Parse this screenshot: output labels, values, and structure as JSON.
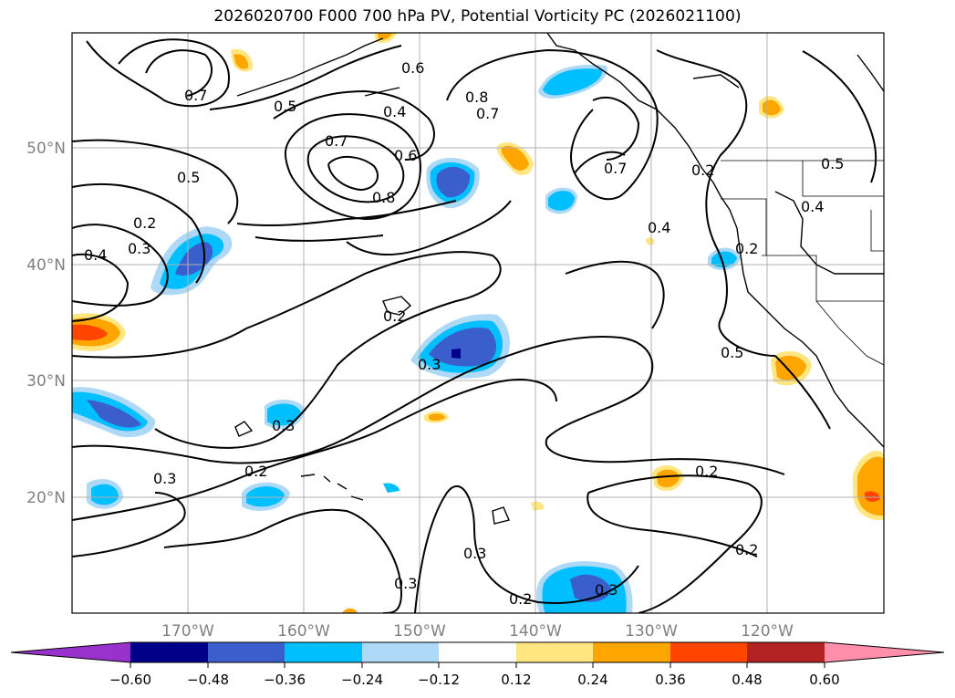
{
  "title": "2026020700 F000 700 hPa PV, Potential Vorticity PC (2026021100)",
  "map": {
    "lat_labels": [
      "50°N",
      "40°N",
      "30°N",
      "20°N"
    ],
    "lon_labels": [
      "170°W",
      "160°W",
      "150°W",
      "140°W",
      "130°W",
      "120°W"
    ],
    "contour_labels": [
      "0.7",
      "0.5",
      "0.6",
      "0.4",
      "0.8",
      "0.7",
      "0.7",
      "0.6",
      "0.8",
      "0.7",
      "0.5",
      "0.2",
      "0.3",
      "0.4",
      "0.2",
      "0.3",
      "0.3",
      "0.2",
      "0.3",
      "0.3",
      "0.2",
      "0.4",
      "0.2",
      "0.5",
      "0.4",
      "0.5",
      "0.2",
      "0.2",
      "0.2",
      "0.3",
      "0.3"
    ]
  },
  "colorbar": {
    "ticks": [
      "−0.60",
      "−0.48",
      "−0.36",
      "−0.24",
      "−0.12",
      "0.12",
      "0.24",
      "0.36",
      "0.48",
      "0.60"
    ],
    "colors": [
      "#9932cc",
      "#00008b",
      "#3a5fcd",
      "#00bfff",
      "#add8f6",
      "#ffffff",
      "#ffe680",
      "#ffa500",
      "#ff4500",
      "#b22222",
      "#ff8fab"
    ]
  }
}
